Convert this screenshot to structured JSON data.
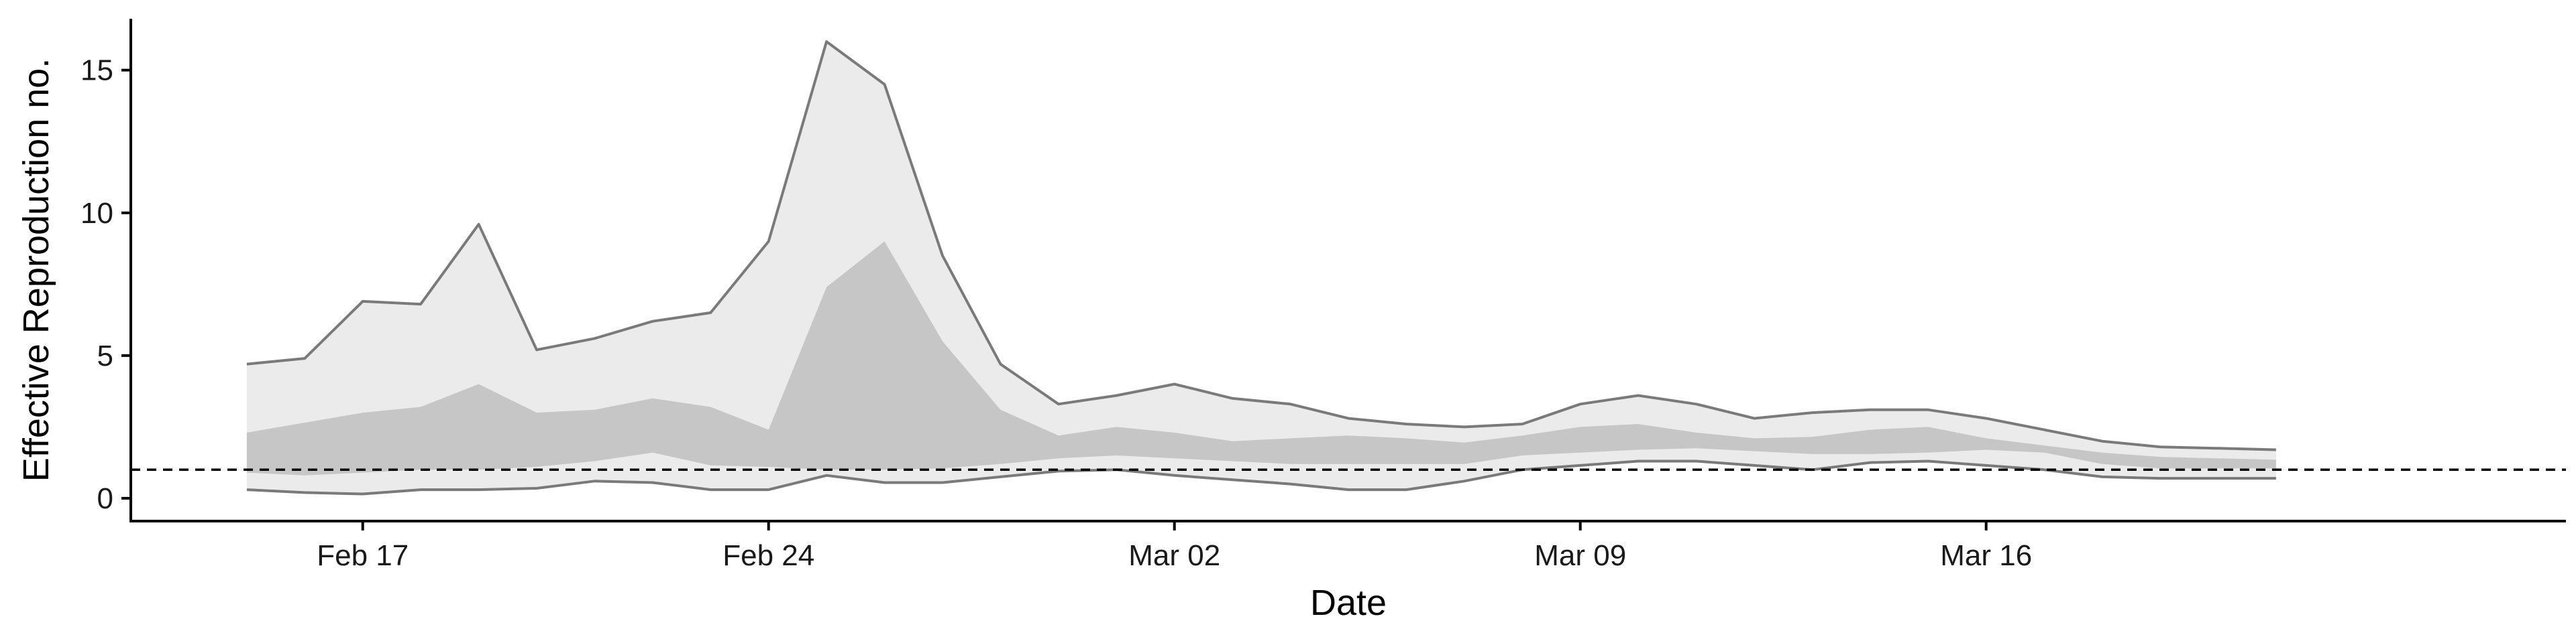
{
  "chart_data": {
    "type": "area",
    "xlabel": "Date",
    "ylabel": "Effective Reproduction no.",
    "x_dates": [
      "2020-02-15",
      "2020-02-16",
      "2020-02-17",
      "2020-02-18",
      "2020-02-19",
      "2020-02-20",
      "2020-02-21",
      "2020-02-22",
      "2020-02-23",
      "2020-02-24",
      "2020-02-25",
      "2020-02-26",
      "2020-02-27",
      "2020-02-28",
      "2020-02-29",
      "2020-03-01",
      "2020-03-02",
      "2020-03-03",
      "2020-03-04",
      "2020-03-05",
      "2020-03-06",
      "2020-03-07",
      "2020-03-08",
      "2020-03-09",
      "2020-03-10",
      "2020-03-11",
      "2020-03-12",
      "2020-03-13",
      "2020-03-14",
      "2020-03-15",
      "2020-03-16",
      "2020-03-17",
      "2020-03-18",
      "2020-03-19",
      "2020-03-20",
      "2020-03-21"
    ],
    "x_ticks": [
      {
        "date": "2020-02-17",
        "label": "Feb 17"
      },
      {
        "date": "2020-02-24",
        "label": "Feb 24"
      },
      {
        "date": "2020-03-02",
        "label": "Mar 02"
      },
      {
        "date": "2020-03-09",
        "label": "Mar 09"
      },
      {
        "date": "2020-03-16",
        "label": "Mar 16"
      }
    ],
    "y_ticks": [
      0,
      5,
      10,
      15
    ],
    "xlim": [
      "2020-02-13",
      "2020-03-26"
    ],
    "ylim": [
      -0.8,
      16.8
    ],
    "reference_line": {
      "y": 1,
      "style": "dashed"
    },
    "bands": [
      {
        "level": "outer",
        "lower": [
          0.3,
          0.2,
          0.15,
          0.3,
          0.3,
          0.35,
          0.6,
          0.55,
          0.3,
          0.3,
          0.8,
          0.55,
          0.55,
          0.75,
          0.95,
          1.0,
          0.8,
          0.65,
          0.5,
          0.3,
          0.3,
          0.6,
          1.0,
          1.15,
          1.3,
          1.3,
          1.15,
          1.0,
          1.25,
          1.3,
          1.15,
          1.0,
          0.75,
          0.7,
          0.7,
          0.7
        ],
        "upper": [
          4.7,
          4.9,
          6.9,
          6.8,
          9.6,
          5.2,
          5.6,
          6.2,
          6.5,
          9.0,
          16.0,
          14.5,
          8.5,
          4.7,
          3.3,
          3.6,
          4.0,
          3.5,
          3.3,
          2.8,
          2.6,
          2.5,
          2.6,
          3.3,
          3.6,
          3.3,
          2.8,
          3.0,
          3.1,
          3.1,
          2.8,
          2.4,
          2.0,
          1.8,
          1.75,
          1.7
        ],
        "color": "#ebebeb",
        "edge_color": "#7a7a7a"
      },
      {
        "level": "inner",
        "lower": [
          0.9,
          0.8,
          0.9,
          1.0,
          1.0,
          1.1,
          1.3,
          1.6,
          1.15,
          1.1,
          1.0,
          1.0,
          1.05,
          1.2,
          1.4,
          1.5,
          1.4,
          1.3,
          1.2,
          1.2,
          1.2,
          1.2,
          1.5,
          1.6,
          1.7,
          1.75,
          1.65,
          1.55,
          1.55,
          1.6,
          1.7,
          1.6,
          1.2,
          1.05,
          1.05,
          1.05
        ],
        "upper": [
          2.3,
          2.65,
          3.0,
          3.2,
          4.0,
          3.0,
          3.1,
          3.5,
          3.2,
          2.4,
          7.4,
          9.0,
          5.5,
          3.1,
          2.2,
          2.5,
          2.3,
          2.0,
          2.1,
          2.2,
          2.1,
          1.95,
          2.2,
          2.5,
          2.6,
          2.3,
          2.1,
          2.15,
          2.4,
          2.5,
          2.1,
          1.85,
          1.6,
          1.45,
          1.4,
          1.35
        ],
        "color": "#c6c6c6"
      }
    ]
  }
}
